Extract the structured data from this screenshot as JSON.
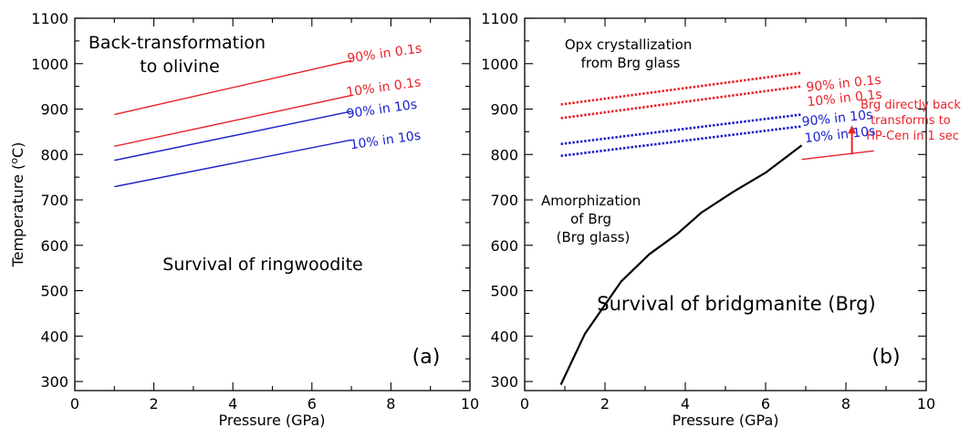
{
  "chart_data": [
    {
      "type": "line",
      "panel_label": "(a)",
      "xlabel": "Pressure (GPa)",
      "ylabel": "Temperature (°C)",
      "xlim": [
        0,
        10
      ],
      "ylim": [
        280,
        1100
      ],
      "xticks": [
        0,
        2,
        4,
        6,
        8,
        10
      ],
      "yticks": [
        300,
        400,
        500,
        600,
        700,
        800,
        900,
        1000,
        1100
      ],
      "grid": false,
      "series": [
        {
          "name": "90% in 0.1s",
          "color": "#e8232a",
          "style": "solid",
          "x": [
            1,
            7
          ],
          "y": [
            888,
            1007
          ]
        },
        {
          "name": "10% in 0.1s",
          "color": "#e8232a",
          "style": "solid",
          "x": [
            1,
            7
          ],
          "y": [
            818,
            930
          ]
        },
        {
          "name": "90% in 10s",
          "color": "#1a22c8",
          "style": "solid",
          "x": [
            1,
            7
          ],
          "y": [
            787,
            895
          ]
        },
        {
          "name": "10% in 10s",
          "color": "#1a22c8",
          "style": "solid",
          "x": [
            1,
            7
          ],
          "y": [
            729,
            832
          ]
        }
      ],
      "annotations": [
        {
          "lines": [
            "Back-transformation",
            "to olivine"
          ],
          "color": "#000000"
        },
        {
          "lines": [
            "Survival of ringwoodite"
          ],
          "color": "#000000"
        }
      ]
    },
    {
      "type": "line",
      "panel_label": "(b)",
      "xlabel": "Pressure (GPa)",
      "ylabel": "",
      "xlim": [
        0,
        10
      ],
      "ylim": [
        280,
        1100
      ],
      "xticks": [
        0,
        2,
        4,
        6,
        8,
        10
      ],
      "yticks": [
        300,
        400,
        500,
        600,
        700,
        800,
        900,
        1000,
        1100
      ],
      "grid": false,
      "series": [
        {
          "name": "90% in 0.1s",
          "color": "#e8232a",
          "style": "dotted",
          "x": [
            0.9,
            6.9
          ],
          "y": [
            910,
            980
          ]
        },
        {
          "name": "10% in 0.1s",
          "color": "#e8232a",
          "style": "dotted",
          "x": [
            0.9,
            6.9
          ],
          "y": [
            880,
            950
          ]
        },
        {
          "name": "90% in 10s",
          "color": "#1a22c8",
          "style": "dotted",
          "x": [
            0.9,
            6.9
          ],
          "y": [
            823,
            888
          ]
        },
        {
          "name": "10% in 10s",
          "color": "#1a22c8",
          "style": "dotted",
          "x": [
            0.9,
            6.9
          ],
          "y": [
            797,
            862
          ]
        },
        {
          "name": "",
          "color": "#000000",
          "style": "solid",
          "x": [
            0.9,
            1.5,
            2.4,
            3.1,
            3.8,
            4.4,
            5.2,
            6.0,
            6.9
          ],
          "y": [
            293,
            405,
            520,
            580,
            625,
            672,
            718,
            760,
            820
          ]
        },
        {
          "name": "",
          "color": "#e8232a",
          "style": "solid",
          "x": [
            6.9,
            8.7
          ],
          "y": [
            789,
            808
          ]
        }
      ],
      "annotations": [
        {
          "lines": [
            "Opx crystallization",
            "from Brg glass"
          ],
          "color": "#000000"
        },
        {
          "lines": [
            "Amorphization",
            "of Brg",
            "(Brg glass)"
          ],
          "color": "#000000"
        },
        {
          "lines": [
            "Survival of bridgmanite (Brg)"
          ],
          "color": "#000000"
        },
        {
          "lines": [
            "Brg directly back",
            "transforms to",
            "HP-Cen in 1 sec"
          ],
          "color": "#e8232a"
        }
      ],
      "arrow": {
        "color": "#e8232a",
        "x": 8.15,
        "y_from": 800,
        "y_to": 860
      }
    }
  ]
}
